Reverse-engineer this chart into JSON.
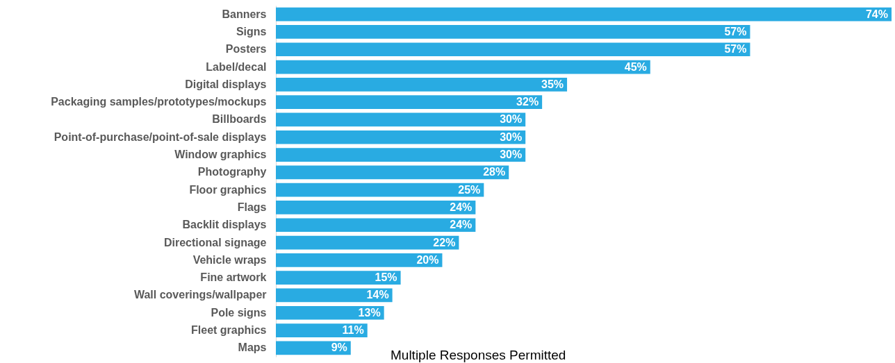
{
  "chart_data": {
    "type": "bar",
    "orientation": "horizontal",
    "categories": [
      "Banners",
      "Signs",
      "Posters",
      "Label/decal",
      "Digital displays",
      "Packaging samples/prototypes/mockups",
      "Billboards",
      "Point-of-purchase/point-of-sale displays",
      "Window graphics",
      "Photography",
      "Floor graphics",
      "Flags",
      "Backlit displays",
      "Directional signage",
      "Vehicle wraps",
      "Fine artwork",
      "Wall coverings/wallpaper",
      "Pole signs",
      "Fleet graphics",
      "Maps"
    ],
    "values": [
      74,
      57,
      57,
      45,
      35,
      32,
      30,
      30,
      30,
      28,
      25,
      24,
      24,
      22,
      20,
      15,
      14,
      13,
      11,
      9
    ],
    "value_labels": [
      "74%",
      "57%",
      "57%",
      "45%",
      "35%",
      "32%",
      "30%",
      "30%",
      "30%",
      "28%",
      "25%",
      "24%",
      "24%",
      "22%",
      "20%",
      "15%",
      "14%",
      "13%",
      "11%",
      "9%"
    ],
    "color": "#29abe2",
    "annotations": [
      "Multiple Responses Permitted"
    ]
  }
}
